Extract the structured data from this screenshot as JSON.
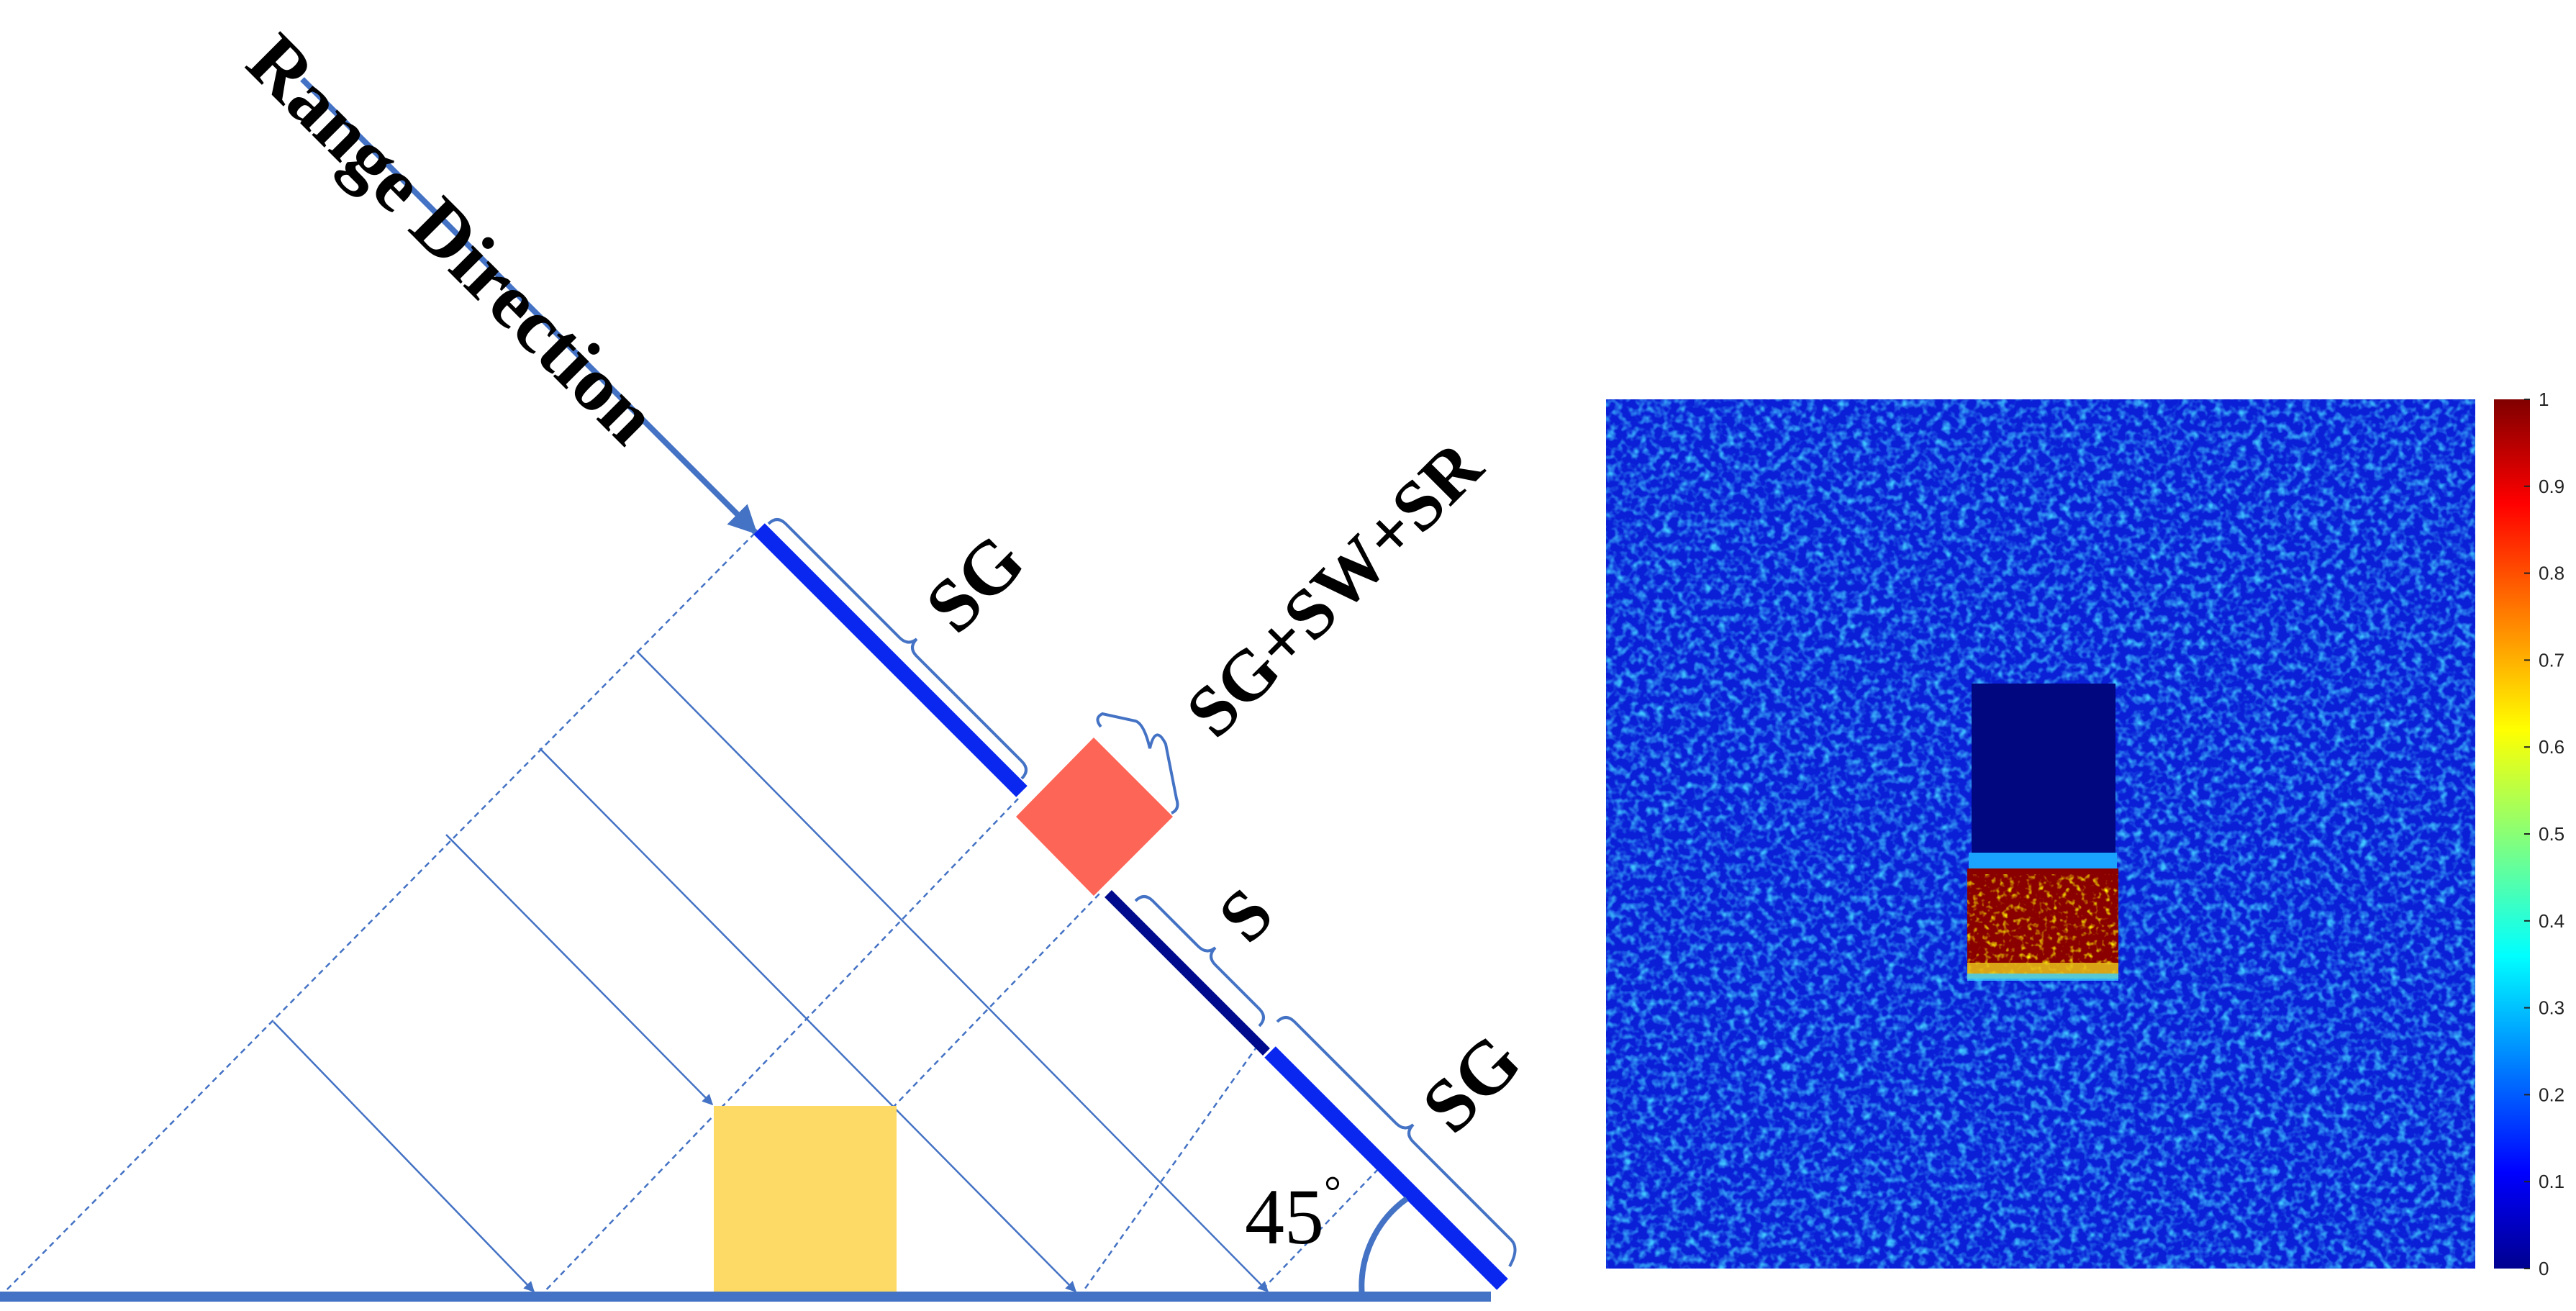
{
  "diagram": {
    "range_label": "Range Direction",
    "sg_top_label": "SG",
    "sgswsr_label": "SG+SW+SR",
    "s_label": "S",
    "sg_bottom_label": "SG",
    "angle_label": "45",
    "degree_symbol": "°",
    "colors": {
      "line": "#4472c4",
      "sg_segment": "#0a27f0",
      "s_segment": "#000a8c",
      "target_box": "#fd6556",
      "ground_object": "#fdd966"
    }
  },
  "heatmap": {
    "colormap": "jet",
    "background_level": "low (~0.1–0.3)",
    "object_top_level": "~0.05",
    "object_bottom_level": "~1.0"
  },
  "colorbar": {
    "ticks": [
      "1",
      "0.9",
      "0.8",
      "0.7",
      "0.6",
      "0.5",
      "0.4",
      "0.3",
      "0.2",
      "0.1",
      "0"
    ]
  }
}
